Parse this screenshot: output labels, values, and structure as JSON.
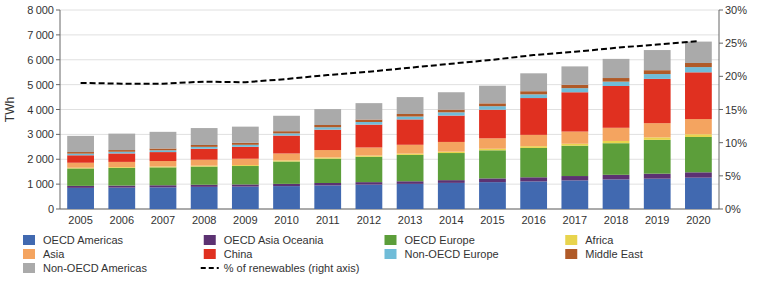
{
  "chart_data": {
    "type": "bar",
    "stacked": true,
    "grid": true,
    "legend": "bottom",
    "y_label": "TWh",
    "categories": [
      "2005",
      "2006",
      "2007",
      "2008",
      "2009",
      "2010",
      "2011",
      "2012",
      "2013",
      "2014",
      "2015",
      "2016",
      "2017",
      "2018",
      "2019",
      "2020"
    ],
    "ylim": [
      0,
      8000
    ],
    "yticks": [
      0,
      {
        "value": 1000,
        "label": "1 000"
      },
      {
        "value": 2000,
        "label": "2 000"
      },
      {
        "value": 3000,
        "label": "3 000"
      },
      {
        "value": 4000,
        "label": "4 000"
      },
      {
        "value": 5000,
        "label": "5 000"
      },
      {
        "value": 6000,
        "label": "6 000"
      },
      {
        "value": 7000,
        "label": "7 000"
      },
      {
        "value": 8000,
        "label": "8 000"
      }
    ],
    "y2lim": [
      0,
      30
    ],
    "y2ticks": [
      {
        "value": 0,
        "label": "0%"
      },
      {
        "value": 5,
        "label": "5%"
      },
      {
        "value": 10,
        "label": "10%"
      },
      {
        "value": 15,
        "label": "15%"
      },
      {
        "value": 20,
        "label": "20%"
      },
      {
        "value": 25,
        "label": "25%"
      },
      {
        "value": 30,
        "label": "30%"
      }
    ],
    "series": [
      {
        "name": "OECD Americas",
        "color": "#4169b0",
        "values": [
          850,
          860,
          870,
          890,
          900,
          920,
          950,
          980,
          1010,
          1050,
          1080,
          1110,
          1150,
          1190,
          1220,
          1260
        ]
      },
      {
        "name": "OECD Asia Oceania",
        "color": "#5c3272",
        "values": [
          80,
          82,
          84,
          86,
          88,
          90,
          95,
          100,
          105,
          110,
          150,
          165,
          175,
          185,
          200,
          215
        ]
      },
      {
        "name": "OECD Europe",
        "color": "#5c9e3a",
        "values": [
          700,
          710,
          720,
          730,
          740,
          900,
          980,
          1020,
          1060,
          1090,
          1130,
          1180,
          1220,
          1270,
          1360,
          1420
        ]
      },
      {
        "name": "Africa",
        "color": "#e8d44d",
        "values": [
          30,
          32,
          34,
          36,
          38,
          42,
          45,
          48,
          52,
          56,
          62,
          70,
          78,
          90,
          100,
          110
        ]
      },
      {
        "name": "Asia",
        "color": "#f4a460",
        "values": [
          200,
          210,
          220,
          240,
          255,
          280,
          300,
          325,
          355,
          390,
          420,
          455,
          490,
          530,
          570,
          610
        ]
      },
      {
        "name": "China",
        "color": "#e03020",
        "values": [
          300,
          340,
          360,
          440,
          480,
          720,
          820,
          920,
          1020,
          1060,
          1150,
          1480,
          1580,
          1680,
          1780,
          1880
        ]
      },
      {
        "name": "Non-OECD Europe",
        "color": "#70bcd8",
        "values": [
          65,
          68,
          72,
          76,
          80,
          88,
          95,
          105,
          115,
          130,
          140,
          150,
          165,
          175,
          195,
          210
        ]
      },
      {
        "name": "Middle East",
        "color": "#b05a28",
        "values": [
          65,
          68,
          72,
          76,
          80,
          88,
          92,
          98,
          102,
          108,
          115,
          125,
          135,
          145,
          155,
          165
        ]
      },
      {
        "name": "Non-OECD Americas",
        "color": "#aaaaaa",
        "values": [
          650,
          660,
          670,
          680,
          650,
          620,
          640,
          660,
          680,
          700,
          710,
          720,
          740,
          770,
          810,
          860
        ]
      },
      {
        "name": "% of renewables (right axis)",
        "type": "line",
        "axis": "y2",
        "color": "#000000",
        "line_style": "dashed",
        "values": [
          19.0,
          18.9,
          18.9,
          19.2,
          19.1,
          19.6,
          20.2,
          20.7,
          21.3,
          21.9,
          22.5,
          23.2,
          23.7,
          24.3,
          24.8,
          25.3
        ]
      }
    ]
  }
}
